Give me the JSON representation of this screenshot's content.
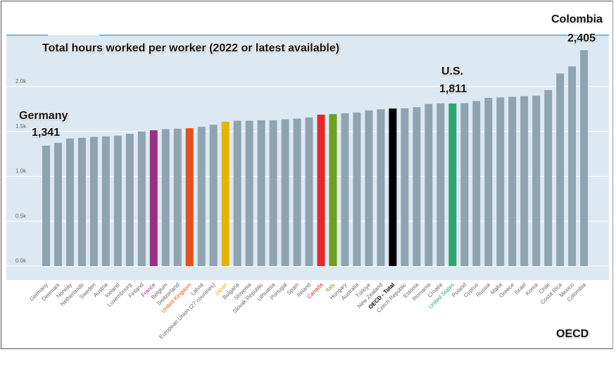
{
  "chart_data": {
    "type": "bar",
    "title": "Total hours worked per worker (2022 or latest available)",
    "source_label": "OECD",
    "ylim": [
      0,
      2500
    ],
    "yticks": [
      0,
      500,
      1000,
      1500,
      2000
    ],
    "ytick_labels": [
      "0.0k",
      "0.5k",
      "1.0k",
      "1.5k",
      "2.0k"
    ],
    "grid": true,
    "categories": [
      "Germany",
      "Denmark",
      "Norway",
      "Netherlands",
      "Sweden",
      "Austria",
      "Iceland",
      "Luxembourg",
      "Finland",
      "France",
      "Belgium",
      "Switzerland",
      "United Kingdom",
      "Latvia",
      "European Union (27 countries)",
      "Japan",
      "Bulgaria",
      "Slovenia",
      "Slovak Republic",
      "Lithuania",
      "Portugal",
      "Spain",
      "Ireland",
      "Canada",
      "Italy",
      "Hungary",
      "Australia",
      "Türkiye",
      "New Zealand",
      "OECD - Total",
      "Czech Republic",
      "Estonia",
      "Romania",
      "Croatia",
      "United States",
      "Poland",
      "Cyprus",
      "Russia",
      "Malta",
      "Greece",
      "Israel",
      "Korea",
      "Chile",
      "Costa Rica",
      "Mexico",
      "Colombia"
    ],
    "values": [
      1341,
      1374,
      1421,
      1429,
      1440,
      1445,
      1453,
      1473,
      1500,
      1513,
      1526,
      1531,
      1536,
      1552,
      1575,
      1609,
      1620,
      1620,
      1625,
      1625,
      1635,
      1643,
      1656,
      1687,
      1693,
      1703,
      1711,
      1734,
      1747,
      1755,
      1758,
      1771,
      1807,
      1813,
      1811,
      1815,
      1839,
      1875,
      1880,
      1886,
      1893,
      1899,
      1961,
      2146,
      2225,
      2405
    ],
    "default_color": "#8fa3b1",
    "highlight_colors": {
      "France": "#9b3083",
      "United Kingdom": "#e15122",
      "Japan": "#e6b400",
      "Canada": "#e5272d",
      "Italy": "#6ea021",
      "OECD - Total": "#000000",
      "United States": "#2ea672"
    },
    "annotations": [
      {
        "country": "Germany",
        "name": "Germany",
        "value": "1,341"
      },
      {
        "country": "United States",
        "name": "U.S.",
        "value": "1,811"
      },
      {
        "country": "Colombia",
        "name": "Colombia",
        "value": "2,405"
      }
    ]
  }
}
